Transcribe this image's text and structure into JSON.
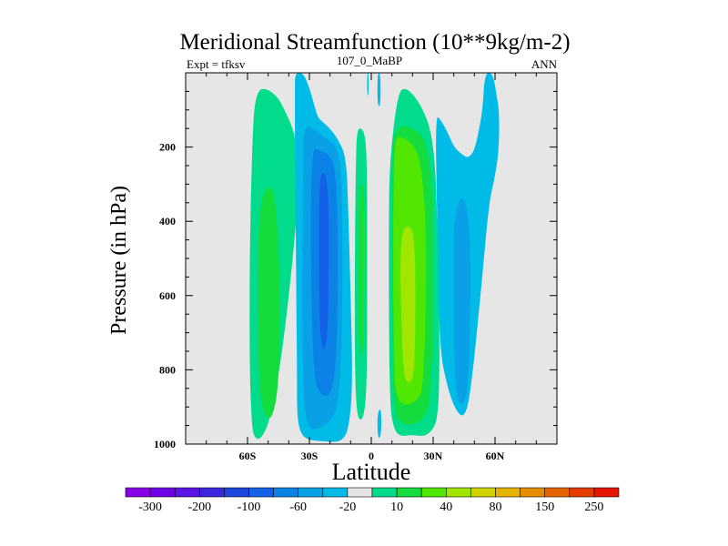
{
  "chart_data": {
    "type": "contour",
    "title": "Meridional Streamfunction (10**9kg/m-2)",
    "left_string": "Expt = tfksv",
    "center_string": "107_0_MaBP",
    "right_string": "ANN",
    "xlabel": "Latitude",
    "ylabel": "Pressure (in hPa)",
    "xlim": [
      -90,
      90
    ],
    "ylim": [
      1000,
      0
    ],
    "x_ticks": [
      {
        "value": -60,
        "label": "60S"
      },
      {
        "value": -30,
        "label": "30S"
      },
      {
        "value": 0,
        "label": "0"
      },
      {
        "value": 30,
        "label": "30N"
      },
      {
        "value": 60,
        "label": "60N"
      }
    ],
    "y_ticks": [
      {
        "value": 200,
        "label": "200"
      },
      {
        "value": 400,
        "label": "400"
      },
      {
        "value": 600,
        "label": "600"
      },
      {
        "value": 800,
        "label": "800"
      },
      {
        "value": 1000,
        "label": "1000"
      }
    ],
    "background_color": "#e6e6e6",
    "colorbar": {
      "colors": [
        "#8a00e6",
        "#6e00e6",
        "#5a14e6",
        "#3c28dc",
        "#1e46dc",
        "#1460e6",
        "#0a82e6",
        "#0aa0e6",
        "#00bbe8",
        "#e6e6e6",
        "#00dc8c",
        "#14dc3c",
        "#50e600",
        "#a0e600",
        "#d2d200",
        "#e6b400",
        "#e68c00",
        "#e66400",
        "#e63c00",
        "#e61400"
      ],
      "levels": [
        {
          "value": -300,
          "label": "-300"
        },
        {
          "value": -200,
          "label": "-200"
        },
        {
          "value": -100,
          "label": "-100"
        },
        {
          "value": -60,
          "label": "-60"
        },
        {
          "value": -20,
          "label": "-20"
        },
        {
          "value": 10,
          "label": "10"
        },
        {
          "value": 40,
          "label": "40"
        },
        {
          "value": 80,
          "label": "80"
        },
        {
          "value": 150,
          "label": "150"
        },
        {
          "value": 250,
          "label": "250"
        }
      ]
    },
    "cells": [
      {
        "name": "sh-ferrel-outer",
        "color": "#00dc8c",
        "lat": [
          -55,
          -52,
          -46,
          -42,
          -38,
          -36,
          -35,
          -38,
          -42,
          -46,
          -50,
          -54,
          -57,
          -58,
          -59,
          -59,
          -58,
          -57
        ],
        "p": [
          50,
          40,
          60,
          100,
          150,
          200,
          300,
          500,
          700,
          850,
          950,
          990,
          980,
          940,
          800,
          500,
          250,
          100
        ]
      },
      {
        "name": "sh-ferrel-mid",
        "color": "#14dc3c",
        "lat": [
          -54,
          -50,
          -47,
          -45,
          -44,
          -45,
          -48,
          -51,
          -54,
          -55,
          -55
        ],
        "p": [
          350,
          300,
          320,
          450,
          650,
          850,
          930,
          930,
          880,
          700,
          500
        ]
      },
      {
        "name": "sh-hadley-outer",
        "color": "#00bbe8",
        "lat": [
          -37,
          -33,
          -30,
          -28,
          -26,
          -24,
          -20,
          -16,
          -12,
          -11,
          -10,
          -9,
          -11,
          -14,
          -18,
          -24,
          -30,
          -34,
          -36,
          -36,
          -36.5,
          -37,
          -37
        ],
        "p": [
          0,
          0,
          40,
          80,
          120,
          130,
          150,
          180,
          230,
          400,
          600,
          850,
          960,
          990,
          995,
          992,
          990,
          975,
          930,
          800,
          500,
          200,
          50
        ]
      },
      {
        "name": "sh-hadley-mid",
        "color": "#0aa0e6",
        "lat": [
          -33,
          -28,
          -24,
          -18,
          -15,
          -14,
          -14,
          -16,
          -20,
          -26,
          -30,
          -33,
          -33.5,
          -33
        ],
        "p": [
          140,
          150,
          170,
          190,
          230,
          350,
          700,
          900,
          940,
          960,
          960,
          900,
          600,
          300
        ]
      },
      {
        "name": "sh-hadley-inner",
        "color": "#0a82e6",
        "lat": [
          -29,
          -25,
          -20,
          -17,
          -16,
          -17,
          -20,
          -24,
          -28,
          -29.5
        ],
        "p": [
          200,
          210,
          220,
          270,
          500,
          800,
          870,
          870,
          830,
          500
        ]
      },
      {
        "name": "sh-hadley-core",
        "color": "#1460e6",
        "lat": [
          -25,
          -23,
          -21,
          -20.5,
          -21,
          -23,
          -25,
          -25.5
        ],
        "p": [
          280,
          265,
          300,
          450,
          700,
          760,
          700,
          450
        ]
      },
      {
        "name": "eq-narrow-green",
        "color": "#00dc8c",
        "lat": [
          -7,
          -4,
          -2.5,
          -2,
          -2,
          -2,
          -3,
          -5,
          -7,
          -8,
          -8,
          -7.5
        ],
        "p": [
          150,
          150,
          190,
          300,
          500,
          800,
          910,
          940,
          920,
          800,
          500,
          250
        ]
      },
      {
        "name": "eq-narrow-green-inner",
        "color": "#14dc3c",
        "lat": [
          -6,
          -3.5,
          -3,
          -3.5,
          -5,
          -6.5,
          -6.5
        ],
        "p": [
          300,
          300,
          450,
          700,
          780,
          700,
          450
        ]
      },
      {
        "name": "eq-cyan-a",
        "color": "#00bbe8",
        "lat": [
          -2,
          -1.3,
          -1.3,
          -2
        ],
        "p": [
          0,
          0,
          60,
          60
        ]
      },
      {
        "name": "eq-cyan-b",
        "color": "#00bbe8",
        "lat": [
          3,
          4.5,
          4.5,
          3
        ],
        "p": [
          0,
          0,
          90,
          90
        ]
      },
      {
        "name": "eq-cyan-c",
        "color": "#00bbe8",
        "lat": [
          3,
          4.5,
          5,
          4.5,
          3.5,
          3
        ],
        "p": [
          920,
          900,
          940,
          980,
          985,
          960
        ]
      },
      {
        "name": "nh-hadley-outer",
        "color": "#00dc8c",
        "lat": [
          9,
          13,
          17,
          22,
          26,
          29,
          31,
          32,
          33,
          33,
          32,
          30,
          26,
          20,
          14,
          11,
          9,
          8.5,
          8.5
        ],
        "p": [
          230,
          50,
          40,
          70,
          110,
          160,
          250,
          400,
          600,
          850,
          930,
          960,
          980,
          975,
          980,
          960,
          900,
          600,
          400
        ]
      },
      {
        "name": "nh-hadley-mid",
        "color": "#14dc3c",
        "lat": [
          10,
          15,
          20,
          25,
          28,
          30,
          30,
          28.5,
          26,
          20,
          15,
          11,
          10,
          10
        ],
        "p": [
          170,
          140,
          150,
          170,
          230,
          350,
          700,
          880,
          930,
          950,
          945,
          920,
          700,
          400
        ]
      },
      {
        "name": "nh-hadley-inner",
        "color": "#50e600",
        "lat": [
          11,
          14,
          20,
          23.5,
          25,
          26.5,
          26.5,
          25,
          23,
          16,
          12,
          11,
          10.5
        ],
        "p": [
          180,
          170,
          190,
          230,
          300,
          400,
          650,
          850,
          880,
          900,
          870,
          800,
          500
        ]
      },
      {
        "name": "nh-hadley-core",
        "color": "#a0e600",
        "lat": [
          15,
          19,
          21,
          21.5,
          21,
          19,
          15.5,
          14.5,
          14
        ],
        "p": [
          420,
          410,
          450,
          600,
          800,
          840,
          820,
          650,
          500
        ]
      },
      {
        "name": "nh-ferrel-outer",
        "color": "#00bbe8",
        "lat": [
          31,
          34,
          37,
          40,
          44,
          47,
          50,
          52,
          54,
          55,
          59,
          61,
          62,
          62,
          60,
          57,
          53,
          48,
          45,
          41,
          37,
          33,
          32
        ],
        "p": [
          110,
          130,
          160,
          200,
          220,
          230,
          210,
          160,
          100,
          0,
          0,
          70,
          100,
          200,
          280,
          350,
          600,
          870,
          930,
          910,
          850,
          740,
          400
        ]
      },
      {
        "name": "nh-ferrel-inner",
        "color": "#0aa0e6",
        "lat": [
          40,
          43,
          46,
          48,
          48,
          47,
          44,
          41,
          40,
          40
        ],
        "p": [
          400,
          330,
          350,
          450,
          650,
          860,
          900,
          870,
          700,
          500
        ]
      }
    ]
  }
}
